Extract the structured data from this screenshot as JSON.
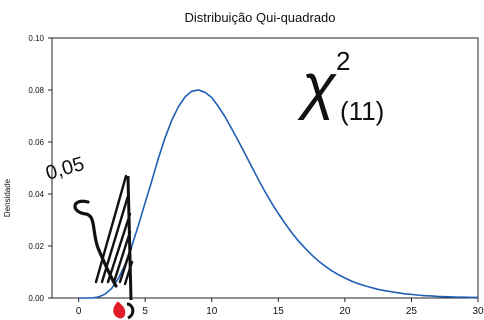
{
  "chart_data": {
    "type": "line",
    "title": "Distribuição Qui-quadrado",
    "xlabel": "",
    "ylabel": "Densidade",
    "xlim": [
      -2,
      30
    ],
    "ylim": [
      0,
      0.1
    ],
    "x_ticks": [
      "0",
      "5",
      "10",
      "15",
      "20",
      "25",
      "30"
    ],
    "y_ticks": [
      "0.00",
      "0.02",
      "0.04",
      "0.06",
      "0.08",
      "0.10"
    ],
    "grid": false,
    "legend": "none",
    "series": [
      {
        "color": "#1f5fb4",
        "x": [
          0,
          0.5,
          1,
          1.5,
          2,
          2.5,
          3,
          3.5,
          4,
          4.5,
          5,
          5.5,
          6,
          6.5,
          7,
          7.5,
          8,
          8.5,
          9,
          9.5,
          10,
          10.5,
          11,
          11.5,
          12,
          12.5,
          13,
          13.5,
          14,
          14.5,
          15,
          15.5,
          16,
          16.5,
          17,
          17.5,
          18,
          18.5,
          19,
          19.5,
          20,
          20.5,
          21,
          21.5,
          22,
          22.5,
          23,
          23.5,
          24,
          24.5,
          25,
          25.5,
          26,
          26.5,
          27,
          27.5,
          28,
          28.5,
          29,
          29.5,
          30
        ],
        "y": [
          0.0,
          0.0,
          0.0,
          0.0004,
          0.0015,
          0.0038,
          0.0076,
          0.013,
          0.0201,
          0.0281,
          0.0367,
          0.0451,
          0.0539,
          0.0617,
          0.0684,
          0.0736,
          0.0774,
          0.0795,
          0.08,
          0.0791,
          0.0771,
          0.0736,
          0.0697,
          0.0651,
          0.0604,
          0.0555,
          0.0505,
          0.0456,
          0.0409,
          0.0365,
          0.0325,
          0.0287,
          0.0252,
          0.022,
          0.0192,
          0.0166,
          0.0143,
          0.0123,
          0.0105,
          0.009,
          0.0077,
          0.0065,
          0.0055,
          0.0047,
          0.004,
          0.0033,
          0.0028,
          0.0024,
          0.002,
          0.0016,
          0.0014,
          0.0011,
          0.0009,
          0.0008,
          0.0006,
          0.0005,
          0.0004,
          0.0003,
          0.0003,
          0.0002,
          0.0002
        ]
      }
    ]
  },
  "annotations": {
    "chi_symbol": "χ",
    "chi_exponent": "2",
    "chi_df": "(11)",
    "alpha": "0,05",
    "region_hatch_color": "#111111",
    "red_mark_color": "#e21b2a"
  }
}
